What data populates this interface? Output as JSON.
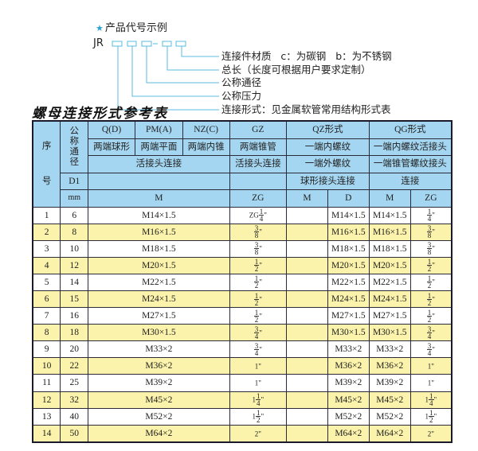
{
  "legend": {
    "title": "产品代号示例",
    "star_icon": "star-icon",
    "code_prefix": "JR",
    "dash": "-",
    "labels": [
      "连接件材质   c：为碳钢   b：为不锈钢",
      "总长（长度可根据用户要求定制）",
      "公称通径",
      "公称压力",
      "连接形式：见金属软管常用结构形式表"
    ]
  },
  "table_title": "螺母连接形式参考表",
  "colors": {
    "header_bg": "#a4d6f1",
    "alt_row_bg": "#fbf3ab",
    "box_color": "#5bbbe0"
  },
  "header": {
    "seq_top": "序",
    "seq_bottom": "号",
    "dn": "公称通径",
    "r1": [
      "Q(D)",
      "PM(A)",
      "NZ(C)",
      "GZ",
      "QZ形式",
      "QG形式"
    ],
    "r2": [
      "两端球形",
      "两端平面",
      "两端内锥",
      "两端锥管",
      "一端内螺纹",
      "一端内螺纹活接头"
    ],
    "r3": [
      "活接头连接",
      "活接头连接",
      "一端外螺纹",
      "一端锥管螺纹接头"
    ],
    "r4": [
      "D1",
      "",
      "",
      "球形接头连接",
      "连接"
    ],
    "r5": [
      "mm",
      "M",
      "ZG",
      "M",
      "D",
      "M",
      "ZG"
    ]
  },
  "rows": [
    {
      "no": "1",
      "dn": "6",
      "m": "M14×1.5",
      "zg": {
        "pre": "ZG",
        "num": "1",
        "den": "4",
        "suf": "\""
      },
      "qz_m": "",
      "qz_d": "M14×1.5",
      "qg_m": "M14×1.5",
      "qg_zg": {
        "pre": "",
        "num": "1",
        "den": "4",
        "suf": "\""
      }
    },
    {
      "no": "2",
      "dn": "8",
      "m": "M16×1.5",
      "zg": {
        "pre": "",
        "num": "3",
        "den": "8",
        "suf": "\""
      },
      "qz_m": "",
      "qz_d": "M16×1.5",
      "qg_m": "M16×1.5",
      "qg_zg": {
        "pre": "",
        "num": "3",
        "den": "8",
        "suf": "\""
      }
    },
    {
      "no": "3",
      "dn": "10",
      "m": "M18×1.5",
      "zg": {
        "pre": "",
        "num": "3",
        "den": "8",
        "suf": "\""
      },
      "qz_m": "",
      "qz_d": "M18×1.5",
      "qg_m": "M18×1.5",
      "qg_zg": {
        "pre": "",
        "num": "3",
        "den": "8",
        "suf": "\""
      }
    },
    {
      "no": "4",
      "dn": "12",
      "m": "M20×1.5",
      "zg": {
        "pre": "",
        "num": "1",
        "den": "2",
        "suf": "\""
      },
      "qz_m": "",
      "qz_d": "M20×1.5",
      "qg_m": "M20×1.5",
      "qg_zg": {
        "pre": "",
        "num": "1",
        "den": "2",
        "suf": "\""
      }
    },
    {
      "no": "5",
      "dn": "14",
      "m": "M22×1.5",
      "zg": {
        "pre": "",
        "num": "1",
        "den": "2",
        "suf": "\""
      },
      "qz_m": "",
      "qz_d": "M22×1.5",
      "qg_m": "M22×1.5",
      "qg_zg": {
        "pre": "",
        "num": "1",
        "den": "2",
        "suf": "\""
      }
    },
    {
      "no": "6",
      "dn": "15",
      "m": "M24×1.5",
      "zg": {
        "pre": "",
        "num": "1",
        "den": "2",
        "suf": "\""
      },
      "qz_m": "",
      "qz_d": "M24×1.5",
      "qg_m": "M24×1.5",
      "qg_zg": {
        "pre": "",
        "num": "1",
        "den": "2",
        "suf": "\""
      }
    },
    {
      "no": "7",
      "dn": "16",
      "m": "M27×1.5",
      "zg": {
        "pre": "",
        "num": "1",
        "den": "2",
        "suf": "\""
      },
      "qz_m": "",
      "qz_d": "M27×1.5",
      "qg_m": "M27×1.5",
      "qg_zg": {
        "pre": "",
        "num": "1",
        "den": "2",
        "suf": "\""
      }
    },
    {
      "no": "8",
      "dn": "18",
      "m": "M30×1.5",
      "zg": {
        "pre": "",
        "num": "3",
        "den": "4",
        "suf": "\""
      },
      "qz_m": "",
      "qz_d": "M30×1.5",
      "qg_m": "M30×1.5",
      "qg_zg": {
        "pre": "",
        "num": "3",
        "den": "4",
        "suf": "\""
      }
    },
    {
      "no": "9",
      "dn": "20",
      "m": "M33×2",
      "zg": {
        "pre": "",
        "num": "3",
        "den": "4",
        "suf": "\""
      },
      "qz_m": "",
      "qz_d": "M33×2",
      "qg_m": "M33×2",
      "qg_zg": {
        "pre": "",
        "num": "3",
        "den": "4",
        "suf": "\""
      }
    },
    {
      "no": "10",
      "dn": "22",
      "m": "M36×2",
      "zg": {
        "pre": "1\"",
        "num": "",
        "den": "",
        "suf": ""
      },
      "qz_m": "",
      "qz_d": "M36×2",
      "qg_m": "M36×2",
      "qg_zg": {
        "pre": "1\"",
        "num": "",
        "den": "",
        "suf": ""
      }
    },
    {
      "no": "11",
      "dn": "25",
      "m": "M39×2",
      "zg": {
        "pre": "1\"",
        "num": "",
        "den": "",
        "suf": ""
      },
      "qz_m": "",
      "qz_d": "M39×2",
      "qg_m": "M39×2",
      "qg_zg": {
        "pre": "1\"",
        "num": "",
        "den": "",
        "suf": ""
      }
    },
    {
      "no": "12",
      "dn": "32",
      "m": "M45×2",
      "zg": {
        "pre": "1",
        "num": "1",
        "den": "4",
        "suf": "\""
      },
      "qz_m": "",
      "qz_d": "M45×2",
      "qg_m": "M45×2",
      "qg_zg": {
        "pre": "1",
        "num": "1",
        "den": "4",
        "suf": "\""
      }
    },
    {
      "no": "13",
      "dn": "40",
      "m": "M52×2",
      "zg": {
        "pre": "1",
        "num": "1",
        "den": "2",
        "suf": "\""
      },
      "qz_m": "",
      "qz_d": "M52×2",
      "qg_m": "M52×2",
      "qg_zg": {
        "pre": "1",
        "num": "1",
        "den": "2",
        "suf": "\""
      }
    },
    {
      "no": "14",
      "dn": "50",
      "m": "M64×2",
      "zg": {
        "pre": "2\"",
        "num": "",
        "den": "",
        "suf": ""
      },
      "qz_m": "",
      "qz_d": "M64×2",
      "qg_m": "M64×2",
      "qg_zg": {
        "pre": "2\"",
        "num": "",
        "den": "",
        "suf": ""
      }
    }
  ]
}
